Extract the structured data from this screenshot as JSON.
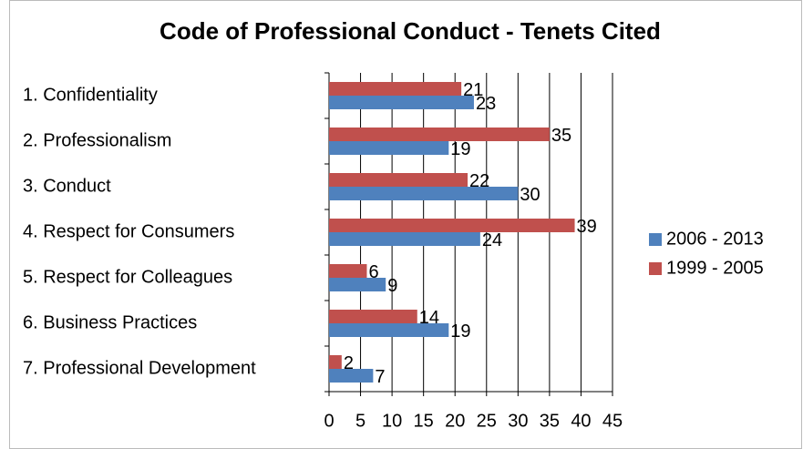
{
  "chart_data": {
    "type": "bar",
    "orientation": "horizontal",
    "title": "Code of Professional Conduct - Tenets Cited",
    "categories": [
      "1. Confidentiality",
      "2. Professionalism",
      "3. Conduct",
      "4. Respect for Consumers",
      "5. Respect for Colleagues",
      "6. Business Practices",
      "7. Professional Development"
    ],
    "series": [
      {
        "name": "2006 - 2013",
        "color": "#4f81bd",
        "values": [
          23,
          19,
          30,
          24,
          9,
          19,
          7
        ]
      },
      {
        "name": "1999 - 2005",
        "color": "#c0504d",
        "values": [
          21,
          35,
          22,
          39,
          6,
          14,
          2
        ]
      }
    ],
    "xlim": [
      0,
      45
    ],
    "xticks": [
      0,
      5,
      10,
      15,
      20,
      25,
      30,
      35,
      40,
      45
    ],
    "grid": true,
    "legend": "right"
  }
}
